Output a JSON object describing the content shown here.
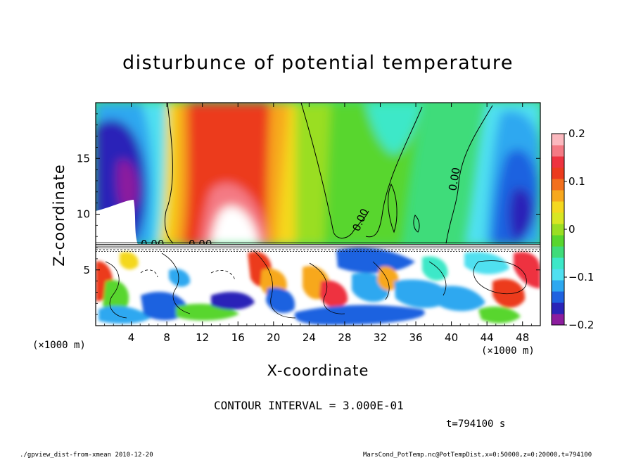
{
  "header": {
    "title": "disturbunce of potential temperature"
  },
  "labels": {
    "contour_interval": "CONTOUR INTERVAL = 3.000E-01",
    "time": "t=794100 s",
    "footer_left": "./gpview_dist-from-xmean  2010-12-20",
    "footer_right": "MarsCond_PotTemp.nc@PotTempDist,x=0:50000,z=0:20000,t=794100"
  },
  "chart_data": {
    "type": "heatmap",
    "title": "disturbunce of potential temperature",
    "xlabel": "X-coordinate",
    "ylabel": "Z-coordinate",
    "x_unit": "(×1000 m)",
    "x_ticks": [
      "4",
      "8",
      "12",
      "16",
      "20",
      "24",
      "28",
      "32",
      "36",
      "40",
      "44",
      "48"
    ],
    "x_tick_values": [
      4,
      8,
      12,
      16,
      20,
      24,
      28,
      32,
      36,
      40,
      44,
      48
    ],
    "xlim": [
      0,
      50
    ],
    "y_ticks": [
      "5",
      "10",
      "15"
    ],
    "y_tick_values": [
      5,
      10,
      15
    ],
    "ylim": [
      0,
      20
    ],
    "colorbar": {
      "ticks": [
        "0.2",
        "0.1",
        "0",
        "−0.1",
        "−0.2"
      ],
      "tick_values": [
        0.2,
        0.1,
        0,
        -0.1,
        -0.2
      ],
      "range": [
        -0.2,
        0.2
      ],
      "colors": [
        "#8c1d9e",
        "#2a24b8",
        "#1f62e0",
        "#2da8f0",
        "#4fe0f0",
        "#3ce8c8",
        "#3fdc7a",
        "#58d62e",
        "#9ade23",
        "#d8e623",
        "#f4d81f",
        "#f7a81e",
        "#f2701e",
        "#ec3b1e",
        "#ee3340",
        "#f47a84",
        "#fbb8be"
      ]
    },
    "contour_labels": [
      "0.00",
      "0.00",
      "0.00",
      "0.00"
    ],
    "regions": [
      {
        "name": "upper-left cold cell",
        "x": [
          0,
          9
        ],
        "z": [
          7.5,
          20
        ],
        "value_min": -0.2
      },
      {
        "name": "upper warm plume",
        "x": [
          11,
          23
        ],
        "z": [
          7.5,
          20
        ],
        "value_max": 0.2
      },
      {
        "name": "central near-zero zone",
        "x": [
          24,
          38
        ],
        "z": [
          7.5,
          20
        ],
        "value": 0
      },
      {
        "name": "upper-right cold cell",
        "x": [
          40,
          50
        ],
        "z": [
          7.5,
          20
        ],
        "value_min": -0.2
      },
      {
        "name": "lower convective layer",
        "x": [
          0,
          50
        ],
        "z": [
          0,
          7.5
        ],
        "value_range": [
          -0.2,
          0.2
        ]
      }
    ],
    "grid": false,
    "legend": "colorbar-right"
  }
}
